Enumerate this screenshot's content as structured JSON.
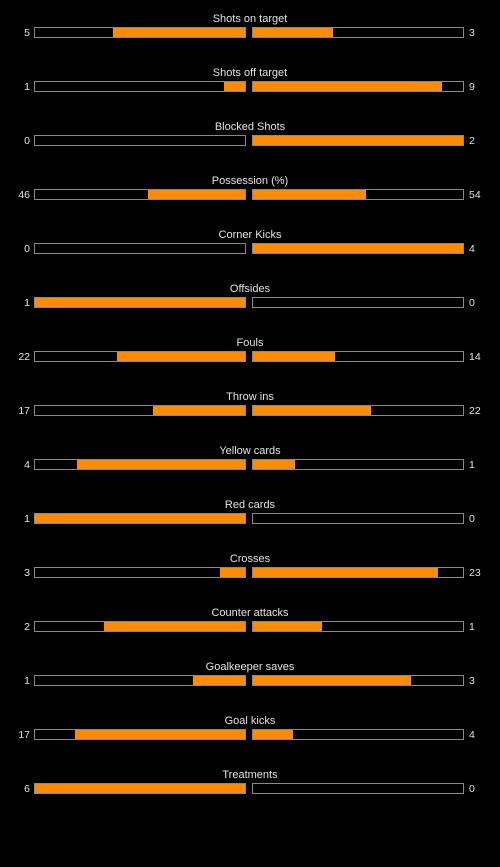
{
  "accent_color": "#ff8c00",
  "stats": [
    {
      "label": "Shots on target",
      "home": "5",
      "away": "3",
      "home_fill": 0.63,
      "away_fill": 0.38
    },
    {
      "label": "Shots off target",
      "home": "1",
      "away": "9",
      "home_fill": 0.1,
      "away_fill": 0.9
    },
    {
      "label": "Blocked Shots",
      "home": "0",
      "away": "2",
      "home_fill": 0.0,
      "away_fill": 1.0
    },
    {
      "label": "Possession (%)",
      "home": "46",
      "away": "54",
      "home_fill": 0.46,
      "away_fill": 0.54
    },
    {
      "label": "Corner Kicks",
      "home": "0",
      "away": "4",
      "home_fill": 0.0,
      "away_fill": 1.0
    },
    {
      "label": "Offsides",
      "home": "1",
      "away": "0",
      "home_fill": 1.0,
      "away_fill": 0.0
    },
    {
      "label": "Fouls",
      "home": "22",
      "away": "14",
      "home_fill": 0.61,
      "away_fill": 0.39
    },
    {
      "label": "Throw ins",
      "home": "17",
      "away": "22",
      "home_fill": 0.44,
      "away_fill": 0.56
    },
    {
      "label": "Yellow cards",
      "home": "4",
      "away": "1",
      "home_fill": 0.8,
      "away_fill": 0.2
    },
    {
      "label": "Red cards",
      "home": "1",
      "away": "0",
      "home_fill": 1.0,
      "away_fill": 0.0
    },
    {
      "label": "Crosses",
      "home": "3",
      "away": "23",
      "home_fill": 0.12,
      "away_fill": 0.88
    },
    {
      "label": "Counter attacks",
      "home": "2",
      "away": "1",
      "home_fill": 0.67,
      "away_fill": 0.33
    },
    {
      "label": "Goalkeeper saves",
      "home": "1",
      "away": "3",
      "home_fill": 0.25,
      "away_fill": 0.75
    },
    {
      "label": "Goal kicks",
      "home": "17",
      "away": "4",
      "home_fill": 0.81,
      "away_fill": 0.19
    },
    {
      "label": "Treatments",
      "home": "6",
      "away": "0",
      "home_fill": 1.0,
      "away_fill": 0.0
    }
  ]
}
